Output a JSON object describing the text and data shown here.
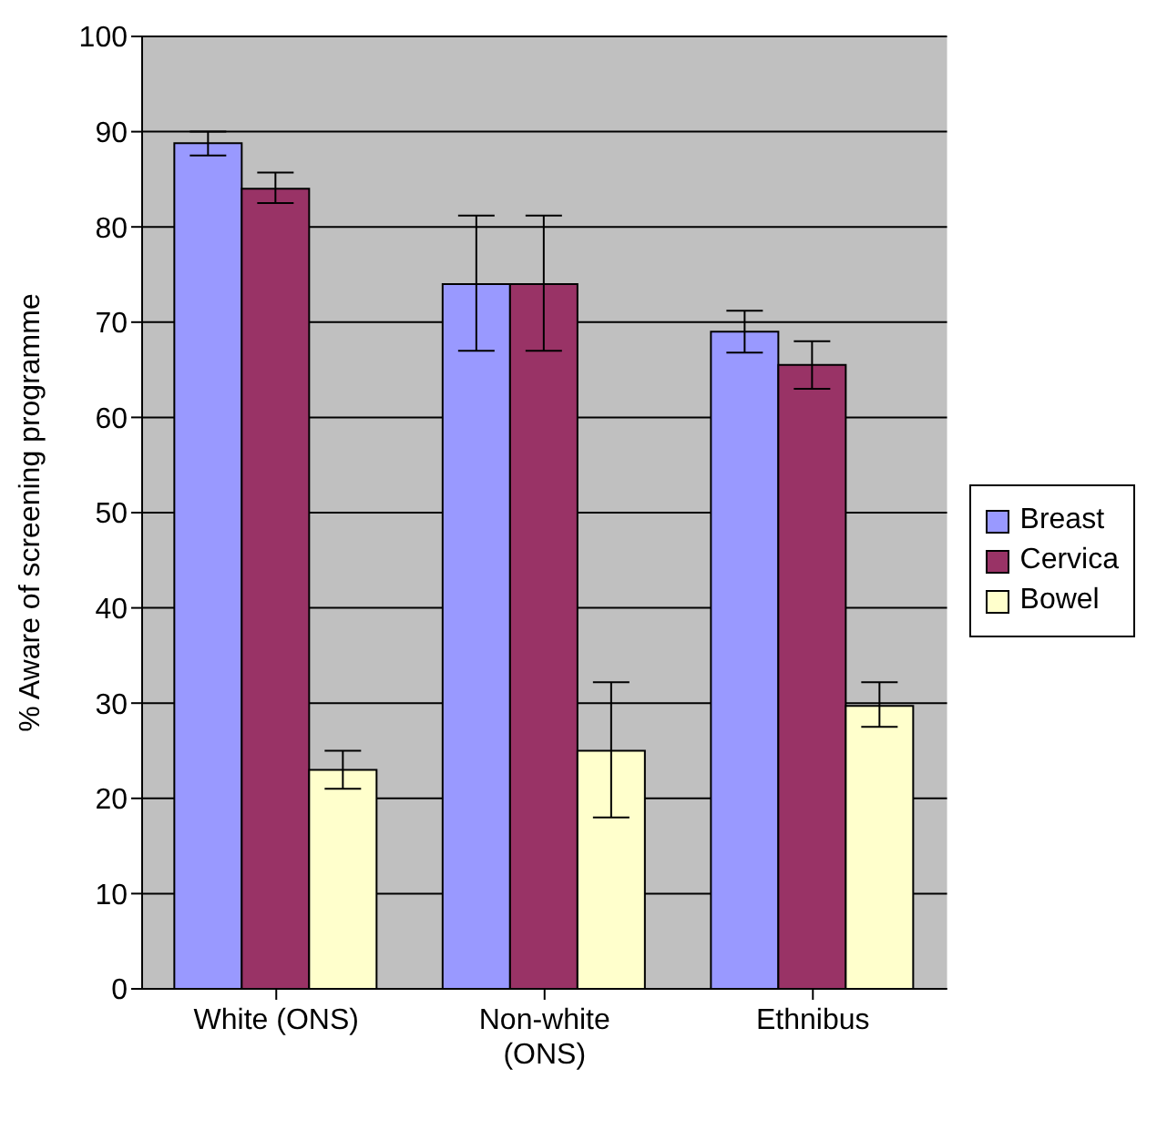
{
  "chart_data": {
    "type": "bar",
    "ylabel": "% Aware of screening programme",
    "categories": [
      "White (ONS)",
      "Non-white (ONS)",
      "Ethnibus"
    ],
    "series": [
      {
        "name": "Breast",
        "color": "#9999ff",
        "values": [
          88.8,
          74,
          69
        ],
        "errors": [
          [
            87.5,
            90
          ],
          [
            67,
            81.2
          ],
          [
            66.8,
            71.2
          ]
        ]
      },
      {
        "name": "Cervica",
        "color": "#993366",
        "values": [
          84,
          74,
          65.5
        ],
        "errors": [
          [
            82.5,
            85.7
          ],
          [
            67,
            81.2
          ],
          [
            63,
            68
          ]
        ]
      },
      {
        "name": "Bowel",
        "color": "#ffffcc",
        "values": [
          23,
          25,
          29.7
        ],
        "errors": [
          [
            21,
            25
          ],
          [
            18,
            32.2
          ],
          [
            27.5,
            32.2
          ]
        ]
      }
    ],
    "ylim": [
      0,
      100
    ],
    "yticks": [
      0,
      10,
      20,
      30,
      40,
      50,
      60,
      70,
      80,
      90,
      100
    ],
    "grid": "y",
    "legend": "right"
  }
}
